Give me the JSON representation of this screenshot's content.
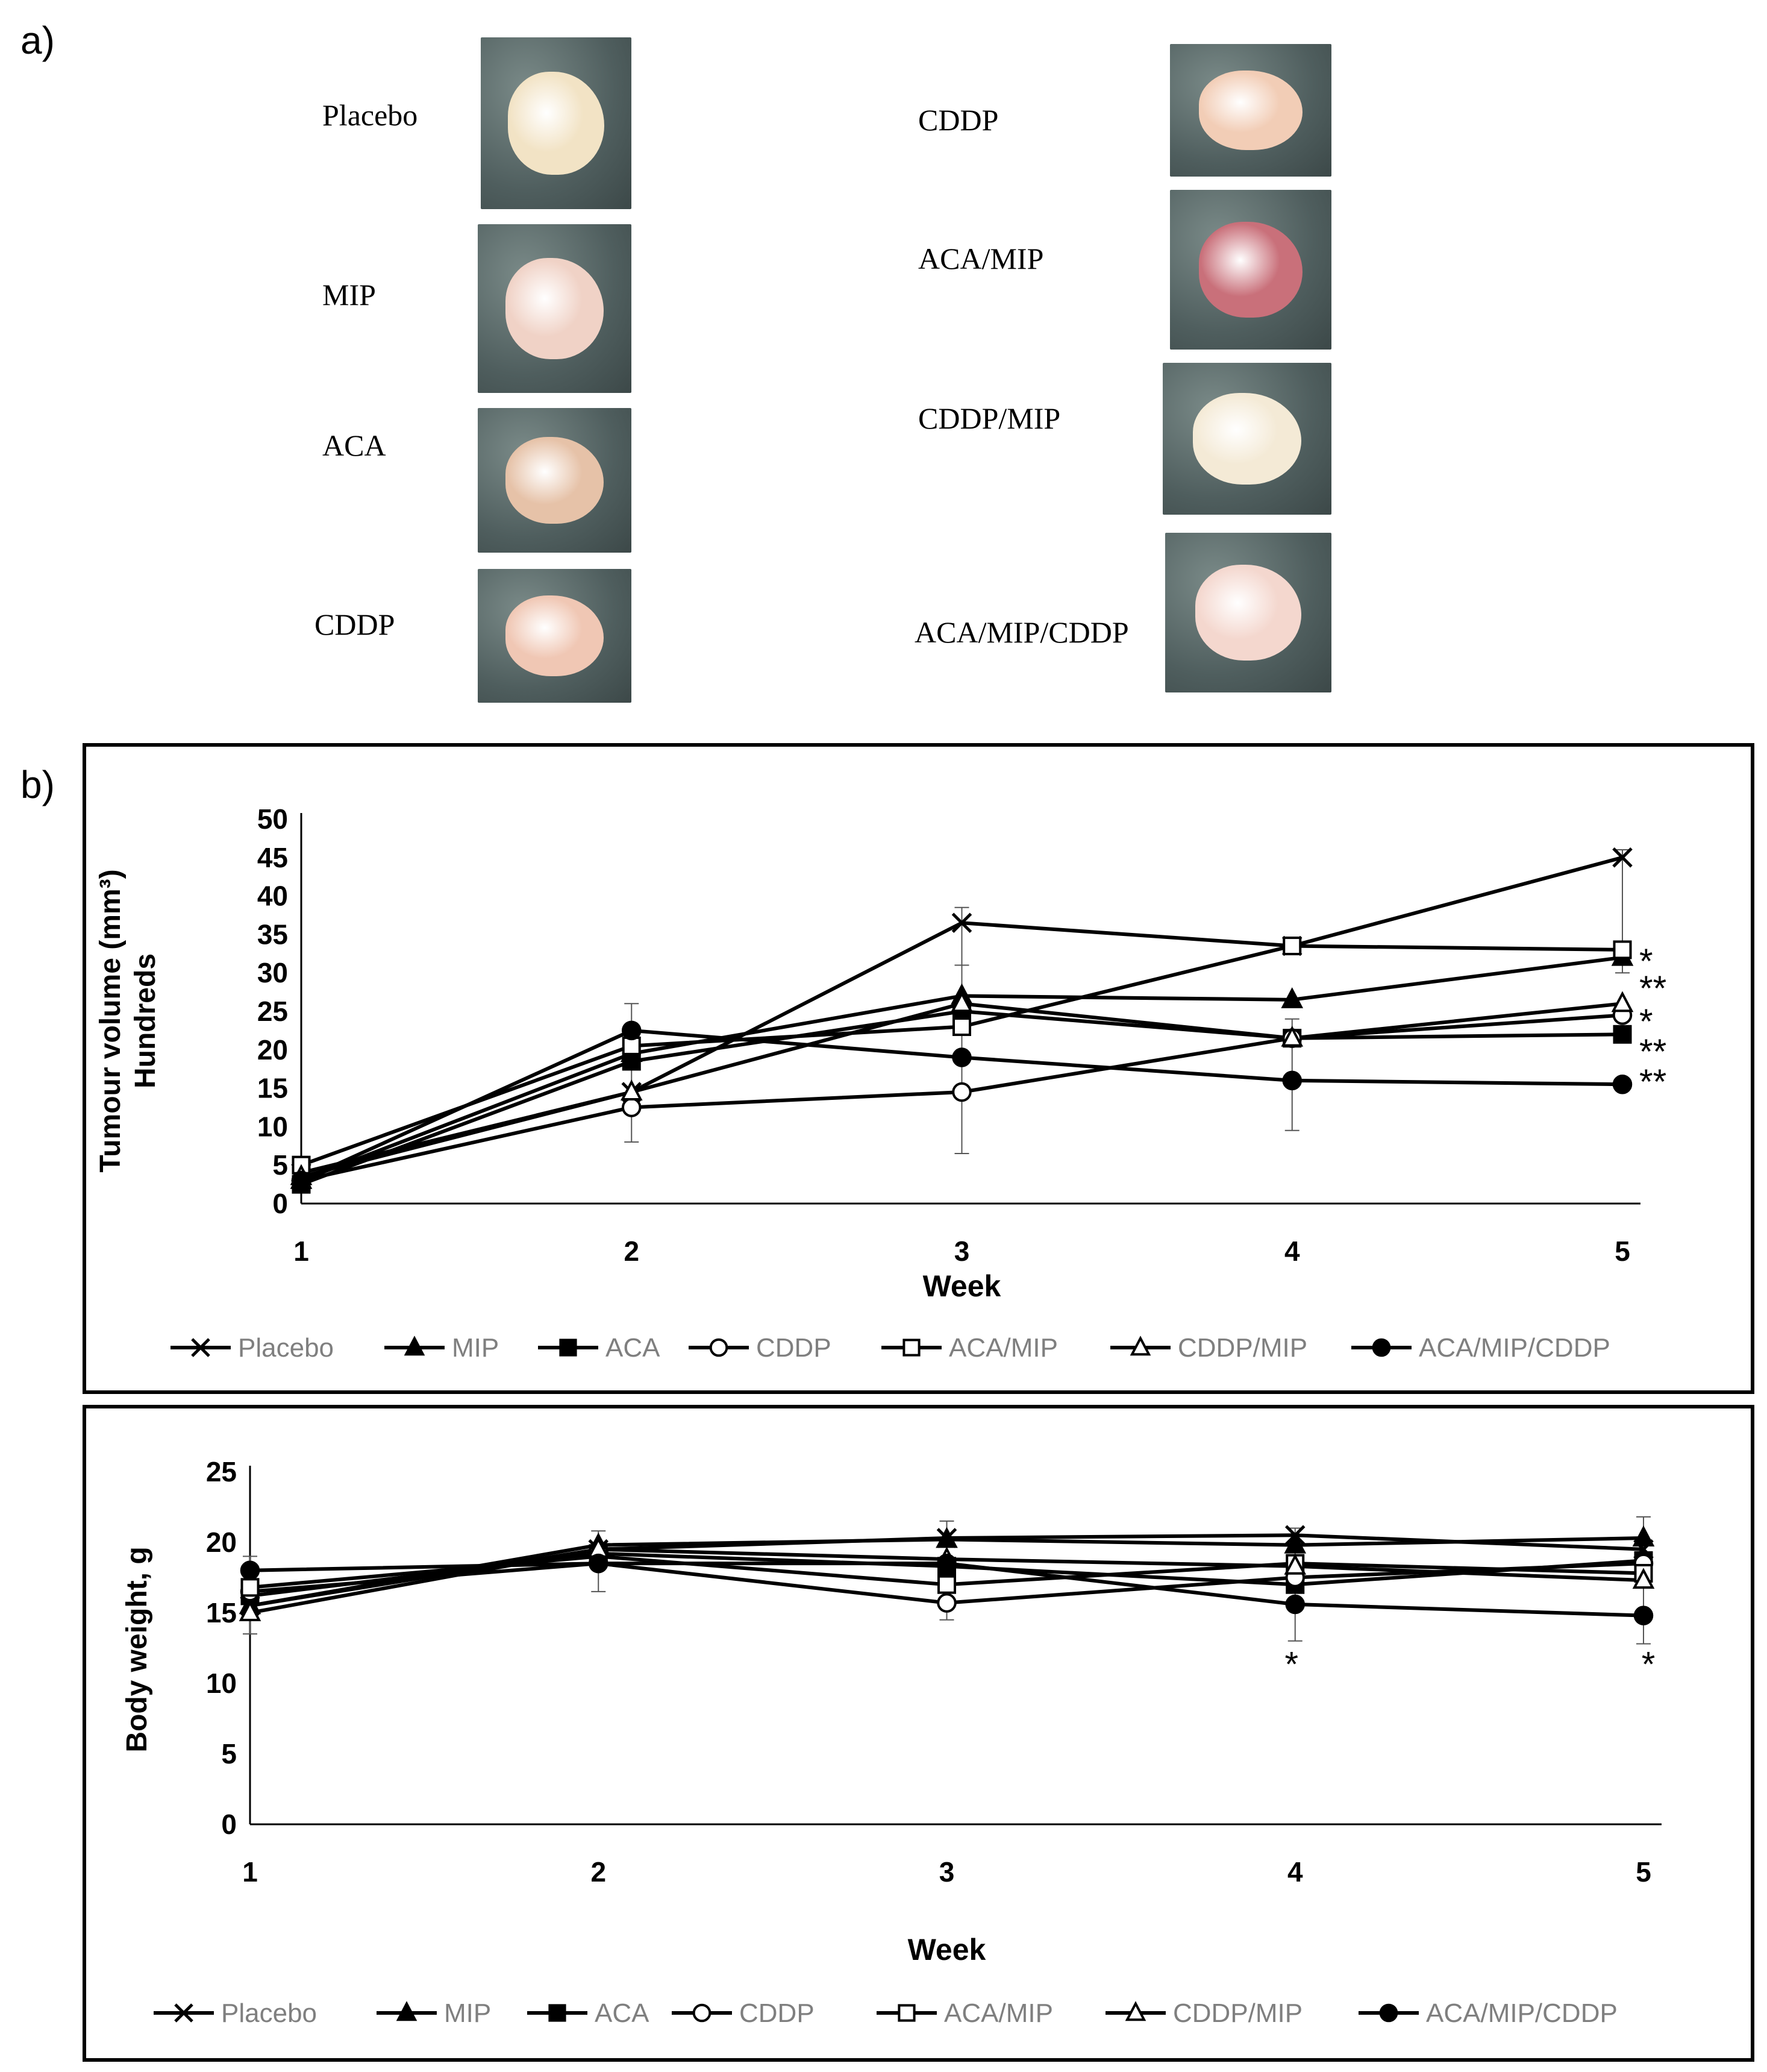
{
  "panel_a": {
    "letter": "a)",
    "left_photos": [
      {
        "label": "Placebo",
        "color": "#f2e3c5"
      },
      {
        "label": "MIP",
        "color": "#f0d2c6"
      },
      {
        "label": "ACA",
        "color": "#e6c2a8"
      },
      {
        "label": "CDDP",
        "color": "#f0c7b4"
      }
    ],
    "right_photos": [
      {
        "label": "CDDP",
        "color": "#f2cdb6"
      },
      {
        "label": "ACA/MIP",
        "color": "#c9707a"
      },
      {
        "label": "CDDP/MIP",
        "color": "#f4ead6"
      },
      {
        "label": "ACA/MIP/CDDP",
        "color": "#f4d7ce"
      }
    ]
  },
  "panel_b": {
    "letter": "b)"
  },
  "legend": [
    "Placebo",
    "MIP",
    "ACA",
    "CDDP",
    "ACA/MIP",
    "CDDP/MIP",
    "ACA/MIP/CDDP"
  ],
  "chart_data": [
    {
      "type": "line",
      "title": "",
      "xlabel": "Week",
      "ylabel": "Tumour volume (mm³) Hundreds",
      "ylabel_lines": [
        "Tumour volume (mm³)",
        "Hundreds"
      ],
      "categories": [
        "1",
        "2",
        "3",
        "4",
        "5"
      ],
      "ylim": [
        0,
        50
      ],
      "yticks": [
        "0",
        "5",
        "10",
        "15",
        "20",
        "25",
        "30",
        "35",
        "40",
        "45",
        "50"
      ],
      "series": [
        {
          "name": "Placebo",
          "marker": "x",
          "values": [
            4,
            14.5,
            36.5,
            33.5,
            45
          ]
        },
        {
          "name": "MIP",
          "marker": "filled-triangle",
          "values": [
            3,
            19.5,
            27,
            26.5,
            32
          ]
        },
        {
          "name": "ACA",
          "marker": "filled-square",
          "values": [
            2.5,
            18.5,
            25,
            21.5,
            22
          ]
        },
        {
          "name": "CDDP",
          "marker": "open-circle",
          "values": [
            3,
            12.5,
            14.5,
            21.5,
            24.5
          ]
        },
        {
          "name": "ACA/MIP",
          "marker": "open-square",
          "values": [
            5,
            20.5,
            23,
            33.5,
            33
          ]
        },
        {
          "name": "CDDP/MIP",
          "marker": "open-triangle",
          "values": [
            3.5,
            14.5,
            26,
            21.5,
            26
          ]
        },
        {
          "name": "ACA/MIP/CDDP",
          "marker": "filled-circle",
          "values": [
            3,
            22.5,
            19,
            16,
            15.5
          ]
        }
      ],
      "error_bars": [
        {
          "x": "2",
          "low": 8,
          "high": 26
        },
        {
          "x": "3",
          "low": 6.5,
          "high": 38.5
        },
        {
          "x": "3",
          "low": 23,
          "high": 31
        },
        {
          "x": "4",
          "low": 9.5,
          "high": 24
        },
        {
          "x": "5",
          "low": 30,
          "high": 46
        }
      ],
      "annotations": [
        "*",
        "**",
        "*",
        "**",
        "**"
      ]
    },
    {
      "type": "line",
      "title": "",
      "xlabel": "Week",
      "ylabel": "Body weight, g",
      "categories": [
        "1",
        "2",
        "3",
        "4",
        "5"
      ],
      "ylim": [
        0,
        25
      ],
      "yticks": [
        "0",
        "5",
        "10",
        "15",
        "20",
        "25"
      ],
      "series": [
        {
          "name": "Placebo",
          "marker": "x",
          "values": [
            15.5,
            19.5,
            20.3,
            20.5,
            19.5
          ]
        },
        {
          "name": "MIP",
          "marker": "filled-triangle",
          "values": [
            15.5,
            19.8,
            20.2,
            19.8,
            20.3
          ]
        },
        {
          "name": "ACA",
          "marker": "filled-square",
          "values": [
            16.2,
            19.2,
            18.3,
            17.0,
            18.7
          ]
        },
        {
          "name": "CDDP",
          "marker": "open-circle",
          "values": [
            16.5,
            18.5,
            15.7,
            17.5,
            18.5
          ]
        },
        {
          "name": "ACA/MIP",
          "marker": "open-square",
          "values": [
            16.8,
            19.0,
            17.0,
            18.5,
            17.8
          ]
        },
        {
          "name": "CDDP/MIP",
          "marker": "open-triangle",
          "values": [
            15.0,
            19.5,
            18.8,
            18.3,
            17.3
          ]
        },
        {
          "name": "ACA/MIP/CDDP",
          "marker": "filled-circle",
          "values": [
            18.0,
            18.5,
            18.5,
            15.6,
            14.8
          ]
        }
      ],
      "error_bars": [
        {
          "x": "1",
          "low": 13.5,
          "high": 19
        },
        {
          "x": "2",
          "low": 16.5,
          "high": 20.8
        },
        {
          "x": "3",
          "low": 14.5,
          "high": 21.5
        },
        {
          "x": "4",
          "low": 13,
          "high": 21
        },
        {
          "x": "5",
          "low": 12.8,
          "high": 21.8
        }
      ],
      "annotations": [
        {
          "x": "4",
          "text": "*"
        },
        {
          "x": "5",
          "text": "*"
        }
      ]
    }
  ]
}
